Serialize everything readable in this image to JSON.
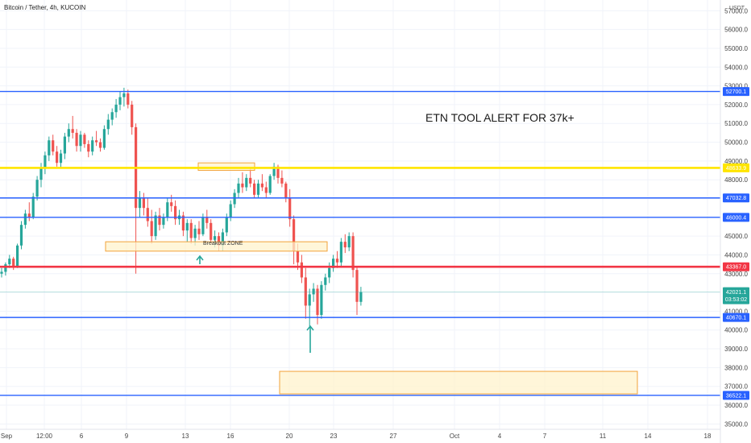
{
  "title": "Bitcoin / Tether, 4h, KUCOIN",
  "currency": "USDT",
  "colors": {
    "up": "#26a69a",
    "down": "#ef5350",
    "blue_line": "#2962ff",
    "yellow_line": "#ffe500",
    "red_line": "#f23645",
    "zone_fill": "#fff3cc",
    "zone_border": "#f2a33a",
    "arrow": "#26a69a"
  },
  "annotation_text": "ETN TOOL ALERT FOR 37k+",
  "zone_label": "Breakout ZONE",
  "chart_data": {
    "type": "candlestick",
    "title": "Bitcoin / Tether, 4h, KUCOIN",
    "xlabel": "",
    "ylabel": "",
    "ylim": [
      34800,
      57400
    ],
    "x_ticks": [
      "Sep",
      "12:00",
      "6",
      "9",
      "13",
      "16",
      "20",
      "23",
      "27",
      "Oct",
      "4",
      "7",
      "11",
      "14",
      "18"
    ],
    "y_ticks": [
      "35000.0",
      "36000.0",
      "37000.0",
      "38000.0",
      "39000.0",
      "40000.0",
      "41000.0",
      "42000.0",
      "43000.0",
      "44000.0",
      "45000.0",
      "46000.0",
      "47000.0",
      "48000.0",
      "49000.0",
      "50000.0",
      "51000.0",
      "52000.0",
      "53000.0",
      "54000.0",
      "55000.0",
      "56000.0",
      "57000.0"
    ],
    "y_tick_values": [
      35000,
      36000,
      37000,
      38000,
      39000,
      40000,
      41000,
      42000,
      43000,
      44000,
      45000,
      46000,
      47000,
      48000,
      49000,
      50000,
      51000,
      52000,
      53000,
      54000,
      55000,
      56000,
      57000
    ],
    "horizontal_levels": [
      {
        "label": "52700.1",
        "value": 52700.1,
        "color": "blue"
      },
      {
        "label": "48633.9",
        "value": 48633.9,
        "color": "yellow"
      },
      {
        "label": "47032.8",
        "value": 47032.8,
        "color": "blue"
      },
      {
        "label": "46000.4",
        "value": 46000.4,
        "color": "blue"
      },
      {
        "label": "43367.0",
        "value": 43367.0,
        "color": "red"
      },
      {
        "label": "40670.1",
        "value": 40670.1,
        "color": "blue"
      },
      {
        "label": "36522.1",
        "value": 36522.1,
        "color": "blue"
      }
    ],
    "last_price": {
      "label": "42021.1",
      "countdown": "03:53:02",
      "value": 42021.1
    },
    "zones": [
      {
        "label": "",
        "x_from": "~17 Sep",
        "x_to": "~18 Sep",
        "y_from": 48500,
        "y_to": 48900
      },
      {
        "label": "Breakout ZONE",
        "x_from": "~7 Sep",
        "x_to": "~24 Sep",
        "y_from": 44200,
        "y_to": 44700
      },
      {
        "label": "",
        "x_from": "~20 Sep",
        "x_to": "~13 Oct",
        "y_from": 36600,
        "y_to": 37800
      }
    ],
    "candles": [
      [
        43000,
        43300,
        42800,
        43100
      ],
      [
        43100,
        43600,
        42900,
        43500
      ],
      [
        43500,
        44000,
        43300,
        43800
      ],
      [
        43800,
        43900,
        43200,
        43400
      ],
      [
        43400,
        44600,
        43300,
        44500
      ],
      [
        44500,
        45800,
        44300,
        45600
      ],
      [
        45600,
        46400,
        45400,
        46200
      ],
      [
        46200,
        46800,
        45800,
        46000
      ],
      [
        46000,
        47300,
        45900,
        47100
      ],
      [
        47100,
        48200,
        46900,
        48000
      ],
      [
        48000,
        48900,
        47600,
        48600
      ],
      [
        48600,
        49500,
        48300,
        49300
      ],
      [
        49300,
        50300,
        49000,
        50100
      ],
      [
        50100,
        50400,
        49300,
        49500
      ],
      [
        49500,
        49800,
        48700,
        48900
      ],
      [
        48900,
        49600,
        48600,
        49400
      ],
      [
        49400,
        50500,
        49100,
        50300
      ],
      [
        50300,
        51000,
        50000,
        50700
      ],
      [
        50700,
        51400,
        50200,
        50500
      ],
      [
        50500,
        50700,
        49500,
        49800
      ],
      [
        49800,
        50600,
        49500,
        50400
      ],
      [
        50400,
        50500,
        49700,
        49900
      ],
      [
        49900,
        50100,
        49200,
        49500
      ],
      [
        49500,
        50300,
        49300,
        50100
      ],
      [
        50100,
        50600,
        49800,
        50000
      ],
      [
        50000,
        50200,
        49500,
        49700
      ],
      [
        49700,
        50900,
        49600,
        50700
      ],
      [
        50700,
        51500,
        50400,
        51200
      ],
      [
        51200,
        51800,
        50900,
        51600
      ],
      [
        51600,
        52300,
        51300,
        52000
      ],
      [
        52000,
        52700,
        51700,
        52400
      ],
      [
        52400,
        52900,
        51900,
        52600
      ],
      [
        52600,
        52800,
        51800,
        52000
      ],
      [
        52000,
        52200,
        50400,
        50800
      ],
      [
        50800,
        51000,
        43000,
        46500
      ],
      [
        46500,
        47400,
        46000,
        47000
      ],
      [
        47000,
        47300,
        46100,
        46500
      ],
      [
        46500,
        47000,
        45500,
        45800
      ],
      [
        45800,
        46400,
        44600,
        45000
      ],
      [
        45000,
        46300,
        44800,
        46100
      ],
      [
        46100,
        46500,
        45300,
        45600
      ],
      [
        45600,
        46200,
        45400,
        46000
      ],
      [
        46000,
        47000,
        45800,
        46800
      ],
      [
        46800,
        47200,
        46300,
        46600
      ],
      [
        46600,
        46900,
        45600,
        45900
      ],
      [
        45900,
        46400,
        45600,
        46100
      ],
      [
        46100,
        46300,
        45000,
        45300
      ],
      [
        45300,
        45900,
        44700,
        45700
      ],
      [
        45700,
        45900,
        44600,
        44900
      ],
      [
        44900,
        45600,
        44500,
        45400
      ],
      [
        45400,
        45800,
        44800,
        45100
      ],
      [
        45100,
        46200,
        45000,
        46000
      ],
      [
        46000,
        46400,
        45400,
        45700
      ],
      [
        45700,
        45900,
        44600,
        44800
      ],
      [
        44800,
        45300,
        44400,
        45000
      ],
      [
        45000,
        45200,
        44200,
        44500
      ],
      [
        44500,
        45400,
        44200,
        45200
      ],
      [
        45200,
        46200,
        45000,
        46000
      ],
      [
        46000,
        46900,
        45800,
        46700
      ],
      [
        46700,
        47500,
        46500,
        47300
      ],
      [
        47300,
        48100,
        47000,
        47800
      ],
      [
        47800,
        48400,
        47300,
        47600
      ],
      [
        47600,
        48300,
        47400,
        48100
      ],
      [
        48100,
        48600,
        47600,
        47800
      ],
      [
        47800,
        48000,
        47000,
        47200
      ],
      [
        47200,
        48000,
        47000,
        47800
      ],
      [
        47800,
        48300,
        47400,
        47600
      ],
      [
        47600,
        47900,
        47000,
        47300
      ],
      [
        47300,
        48300,
        47200,
        48200
      ],
      [
        48200,
        48900,
        48000,
        48700
      ],
      [
        48700,
        48800,
        47800,
        48100
      ],
      [
        48100,
        48500,
        47600,
        47800
      ],
      [
        47800,
        47900,
        46800,
        47000
      ],
      [
        47000,
        47500,
        45500,
        45900
      ],
      [
        45900,
        46100,
        43500,
        44200
      ],
      [
        44200,
        44600,
        43200,
        43600
      ],
      [
        43600,
        44000,
        42500,
        42800
      ],
      [
        42800,
        43300,
        40600,
        41300
      ],
      [
        41300,
        42200,
        40200,
        41900
      ],
      [
        41900,
        42500,
        41500,
        42200
      ],
      [
        42200,
        42400,
        40300,
        40800
      ],
      [
        40800,
        42600,
        40600,
        42400
      ],
      [
        42400,
        43000,
        42100,
        42800
      ],
      [
        42800,
        43600,
        42500,
        43300
      ],
      [
        43300,
        44000,
        43100,
        43800
      ],
      [
        43800,
        44200,
        43300,
        43600
      ],
      [
        43600,
        44900,
        43400,
        44700
      ],
      [
        44700,
        45100,
        44100,
        44400
      ],
      [
        44400,
        45200,
        44200,
        45000
      ],
      [
        45000,
        45200,
        42800,
        43200
      ],
      [
        43200,
        43400,
        40800,
        41500
      ],
      [
        41500,
        42300,
        41300,
        42021
      ]
    ]
  }
}
